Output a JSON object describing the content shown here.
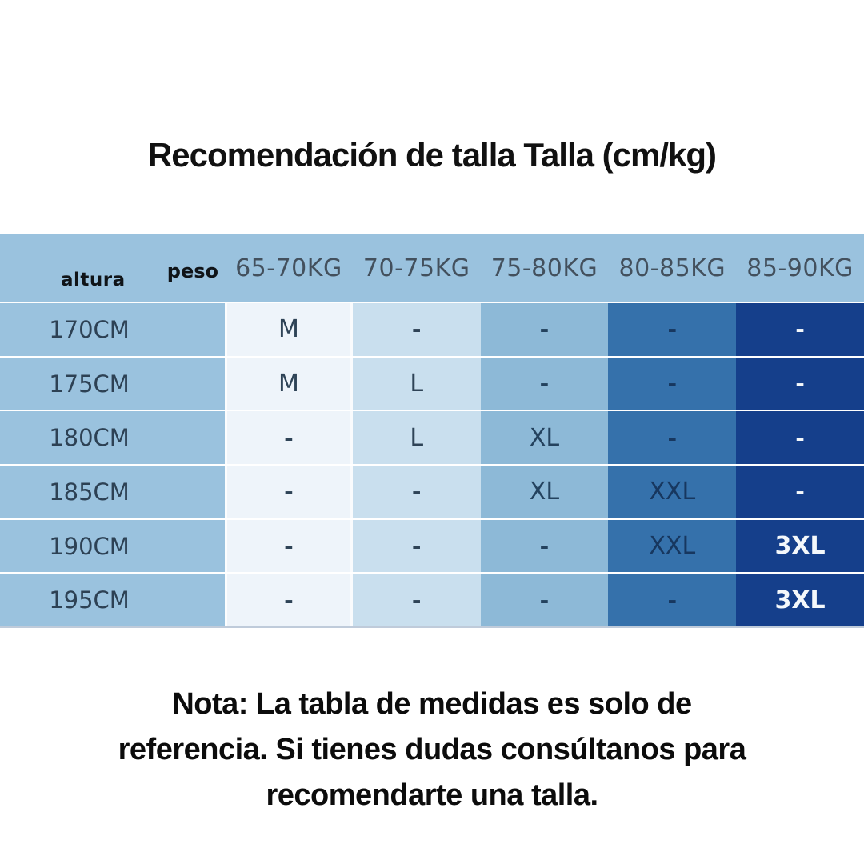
{
  "title": "Recomendación de talla Talla (cm/kg)",
  "table": {
    "row_axis_label": "altura",
    "col_axis_label": "peso",
    "weight_headers": [
      "65-70KG",
      "70-75KG",
      "75-80KG",
      "80-85KG",
      "85-90KG"
    ],
    "rows": [
      {
        "height": "170CM",
        "sizes": [
          "M",
          "-",
          "-",
          "-",
          "-"
        ]
      },
      {
        "height": "175CM",
        "sizes": [
          "M",
          "L",
          "-",
          "-",
          "-"
        ]
      },
      {
        "height": "180CM",
        "sizes": [
          "-",
          "L",
          "XL",
          "-",
          "-"
        ]
      },
      {
        "height": "185CM",
        "sizes": [
          "-",
          "-",
          "XL",
          "XXL",
          "-"
        ]
      },
      {
        "height": "190CM",
        "sizes": [
          "-",
          "-",
          "-",
          "XXL",
          "3XL"
        ]
      },
      {
        "height": "195CM",
        "sizes": [
          "-",
          "-",
          "-",
          "-",
          "3XL"
        ]
      }
    ]
  },
  "note": {
    "lines": [
      "Nota: La tabla de medidas es solo de",
      "referencia.  Si tienes dudas consúltanos para",
      "recomendarte una talla."
    ]
  },
  "colors": {
    "header_blue": "#9ac2de",
    "column_backgrounds": [
      "#eef4fa",
      "#c9dfee",
      "#8db9d7",
      "#3571ab",
      "#153f8b"
    ],
    "column_text_colors": [
      "#2e4356",
      "#2e4356",
      "#24425e",
      "#17375f",
      "#f4f8fb"
    ],
    "header_text": "#43505d",
    "row_label_text": "#2d4154",
    "title_text": "#111111",
    "note_text": "#0c0c0c"
  },
  "chart_data": {
    "type": "table",
    "title": "Recomendación de talla Talla (cm/kg)",
    "row_axis": "altura",
    "column_axis": "peso",
    "columns": [
      "65-70KG",
      "70-75KG",
      "75-80KG",
      "80-85KG",
      "85-90KG"
    ],
    "row_labels": [
      "170CM",
      "175CM",
      "180CM",
      "185CM",
      "190CM",
      "195CM"
    ],
    "values": [
      [
        "M",
        "-",
        "-",
        "-",
        "-"
      ],
      [
        "M",
        "L",
        "-",
        "-",
        "-"
      ],
      [
        "-",
        "L",
        "XL",
        "-",
        "-"
      ],
      [
        "-",
        "-",
        "XL",
        "XXL",
        "-"
      ],
      [
        "-",
        "-",
        "-",
        "XXL",
        "3XL"
      ],
      [
        "-",
        "-",
        "-",
        "-",
        "3XL"
      ]
    ],
    "note": "Nota: La tabla de medidas es solo de referencia.  Si tienes dudas consúltanos para recomendarte una talla."
  }
}
